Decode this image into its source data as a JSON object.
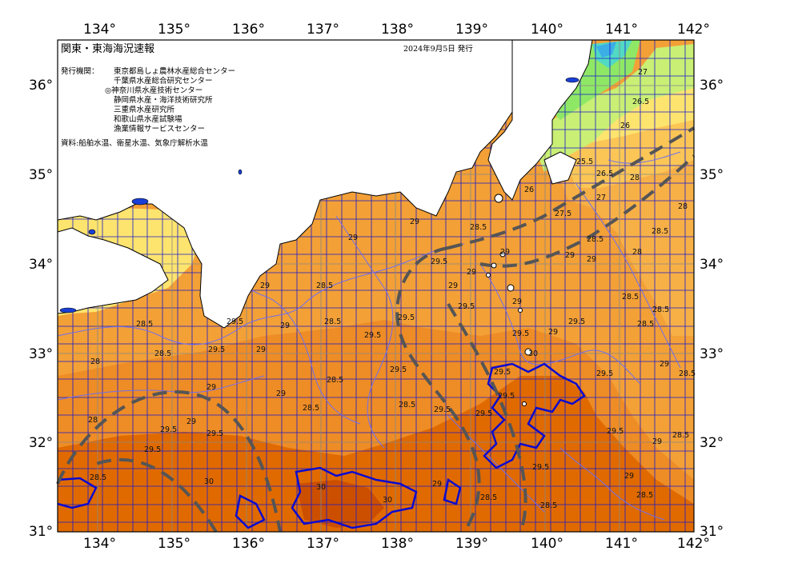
{
  "title": "関東・東海海況速報",
  "issued": "2024年9月5日 発行",
  "issuer_label": "発行機関：",
  "issuers": [
    "東京都島しょ農林水産総合センター",
    "千葉県水産総合研究センター",
    "◎神奈川県水産技術センター",
    "静岡県水産・海洋技術研究所",
    "三重県水産研究所",
    "和歌山県水産試験場",
    "漁業情報サービスセンター"
  ],
  "sources": "資料:船舶水温、衛星水温、気象庁解析水温",
  "lon_ticks": [
    "134°",
    "135°",
    "136°",
    "137°",
    "138°",
    "139°",
    "140°",
    "141°",
    "142°"
  ],
  "lat_ticks": [
    "36°",
    "35°",
    "34°",
    "33°",
    "32°",
    "31°"
  ],
  "contour_labels": [
    "27",
    "26.5",
    "26",
    "25.5",
    "26",
    "26.5",
    "27",
    "27.5",
    "28",
    "28.5",
    "28",
    "28",
    "28.5",
    "28.5",
    "29",
    "29",
    "29",
    "29.5",
    "29",
    "29",
    "28.5",
    "28.5",
    "29",
    "29",
    "28.5",
    "29",
    "28.5",
    "28.5",
    "29.5",
    "29.5",
    "29",
    "29",
    "29.5",
    "29",
    "29.5",
    "29.5",
    "29.5",
    "29.5",
    "29",
    "29.5",
    "30",
    "30",
    "30",
    "30",
    "29.5",
    "29.5",
    "29.5",
    "29.5",
    "28.5",
    "28.5",
    "29.5",
    "28",
    "28.5",
    "29.5",
    "28.5",
    "29.5",
    "29.5",
    "29",
    "28.5",
    "29",
    "29.5",
    "29.5",
    "29",
    "28.5",
    "29",
    "29",
    "28.5",
    "29",
    "28.5",
    "28.5",
    "29",
    "28.5",
    "28.5",
    "28"
  ],
  "colors": {
    "background": "#ffffff",
    "land": "#ffffff",
    "sea_warm_30": "#e06a00",
    "sea_29_5": "#ee8c25",
    "sea_29": "#f3a036",
    "sea_28_5": "#f7b046",
    "sea_28": "#fbc655",
    "sea_27": "#fde46e",
    "sea_26": "#c9ef74",
    "sea_25": "#8fe865",
    "sea_24": "#52d9c3",
    "sea_cold": "#3caee6",
    "grid": "#1a1acc",
    "contour": "#6f6ff0",
    "contour_30": "#0a0ad0",
    "kuroshio_axis": "#555555"
  }
}
